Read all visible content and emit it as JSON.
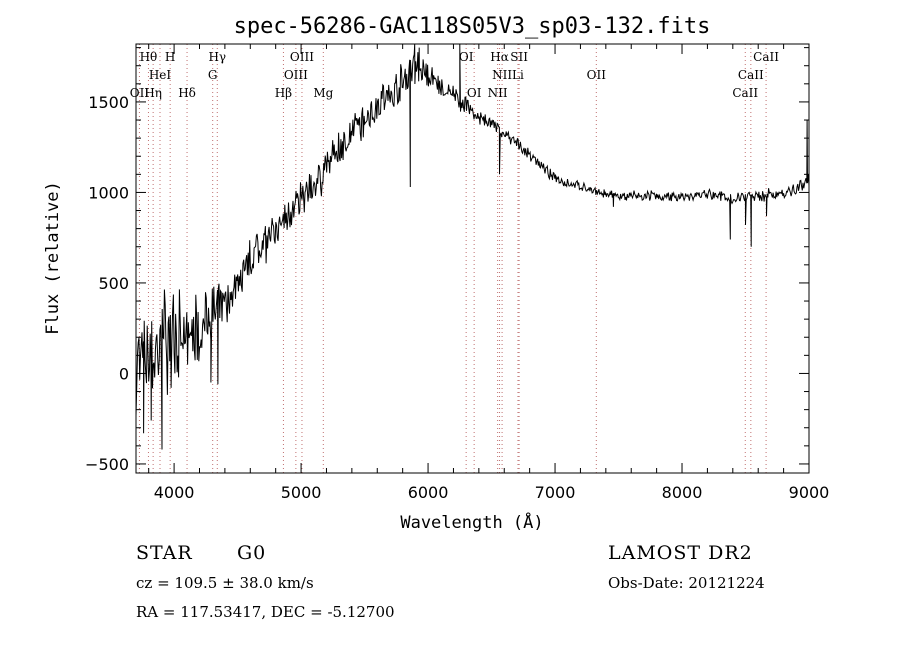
{
  "chart_data": {
    "type": "line",
    "title": "spec-56286-GAC118S05V3_sp03-132.fits",
    "xlabel": "Wavelength (Å)",
    "ylabel": "Flux (relative)",
    "xlim": [
      3700,
      9000
    ],
    "ylim": [
      -550,
      1820
    ],
    "x_ticks": [
      4000,
      5000,
      6000,
      7000,
      8000,
      9000
    ],
    "y_ticks": [
      -500,
      0,
      500,
      1000,
      1500
    ],
    "x_minor_step": 200,
    "y_minor_step": 100,
    "grid": false,
    "series": [
      {
        "color": "#000000",
        "anchor_x": [
          3700,
          3750,
          3800,
          3850,
          3900,
          3950,
          4000,
          4050,
          4100,
          4150,
          4200,
          4250,
          4300,
          4350,
          4400,
          4500,
          4600,
          4700,
          4800,
          4900,
          5000,
          5100,
          5200,
          5300,
          5400,
          5500,
          5600,
          5700,
          5800,
          5850,
          5900,
          5950,
          6000,
          6100,
          6200,
          6300,
          6400,
          6500,
          6550,
          6600,
          6700,
          6800,
          6900,
          7000,
          7100,
          7200,
          7300,
          7400,
          7500,
          7600,
          7700,
          7800,
          7900,
          8000,
          8100,
          8200,
          8300,
          8400,
          8500,
          8600,
          8700,
          8800,
          8900,
          9000
        ],
        "anchor_y": [
          50,
          80,
          60,
          130,
          150,
          170,
          200,
          210,
          180,
          240,
          250,
          330,
          300,
          350,
          350,
          500,
          620,
          720,
          780,
          880,
          970,
          1020,
          1150,
          1250,
          1330,
          1400,
          1470,
          1550,
          1600,
          1660,
          1700,
          1660,
          1640,
          1580,
          1530,
          1480,
          1420,
          1380,
          1350,
          1320,
          1270,
          1210,
          1140,
          1080,
          1050,
          1030,
          1010,
          990,
          980,
          975,
          985,
          980,
          975,
          975,
          980,
          990,
          985,
          960,
          980,
          975,
          985,
          990,
          1020,
          1080
        ],
        "noise_x": [
          3700,
          3900,
          4100,
          4300,
          4500,
          5000,
          5500,
          5900,
          6100,
          6500,
          7000,
          8000,
          8500,
          9000
        ],
        "noise_amp": [
          260,
          300,
          240,
          180,
          110,
          110,
          100,
          110,
          60,
          40,
          30,
          30,
          35,
          45
        ],
        "dips": [
          {
            "x": 3760,
            "y": -330
          },
          {
            "x": 3820,
            "y": -260
          },
          {
            "x": 3905,
            "y": -420
          },
          {
            "x": 4290,
            "y": -50
          },
          {
            "x": 4345,
            "y": -60
          },
          {
            "x": 5860,
            "y": 1030
          },
          {
            "x": 6563,
            "y": 1100
          },
          {
            "x": 7460,
            "y": 920
          },
          {
            "x": 8380,
            "y": 740
          },
          {
            "x": 8500,
            "y": 820
          },
          {
            "x": 8545,
            "y": 700
          },
          {
            "x": 8665,
            "y": 870
          }
        ],
        "spikes": [
          {
            "x": 5895,
            "y": 1830
          },
          {
            "x": 5930,
            "y": 1800
          },
          {
            "x": 6250,
            "y": 1820
          },
          {
            "x": 8985,
            "y": 1400
          }
        ]
      }
    ],
    "lines": [
      {
        "name": "OII",
        "x": 3727,
        "row": 2
      },
      {
        "name": "Hθ",
        "x": 3798,
        "row": 0
      },
      {
        "name": "Hη",
        "x": 3835,
        "row": 2
      },
      {
        "name": "HeI",
        "x": 3889,
        "row": 1
      },
      {
        "name": "H",
        "x": 3969,
        "row": 0
      },
      {
        "name": "Hδ",
        "x": 4102,
        "row": 2
      },
      {
        "name": "Hγ",
        "x": 4340,
        "row": 0
      },
      {
        "name": "G",
        "x": 4304,
        "row": 1
      },
      {
        "name": "Hβ",
        "x": 4861,
        "row": 2
      },
      {
        "name": "OIII",
        "x": 4959,
        "row": 1
      },
      {
        "name": "OIII",
        "x": 5007,
        "row": 0
      },
      {
        "name": "Mg",
        "x": 5175,
        "row": 2
      },
      {
        "name": "OI",
        "x": 6300,
        "row": 0
      },
      {
        "name": "OI",
        "x": 6363,
        "row": 2
      },
      {
        "name": "NII",
        "x": 6548,
        "row": 2
      },
      {
        "name": "Hα",
        "x": 6563,
        "row": 0
      },
      {
        "name": "NII",
        "x": 6583,
        "row": 1
      },
      {
        "name": "Li",
        "x": 6708,
        "row": 1
      },
      {
        "name": "SII",
        "x": 6717,
        "row": 0
      },
      {
        "name": "OII",
        "x": 7325,
        "row": 1
      },
      {
        "name": "CaII",
        "x": 8498,
        "row": 2
      },
      {
        "name": "CaII",
        "x": 8542,
        "row": 1
      },
      {
        "name": "CaII",
        "x": 8662,
        "row": 0
      }
    ]
  },
  "info": {
    "object_class": "STAR",
    "subclass": "G0",
    "cz": "cz = 109.5 ± 38.0 km/s",
    "coords": "RA = 117.53417, DEC =  -5.12700",
    "survey": "LAMOST DR2",
    "obs_date": "Obs-Date: 20121224"
  }
}
